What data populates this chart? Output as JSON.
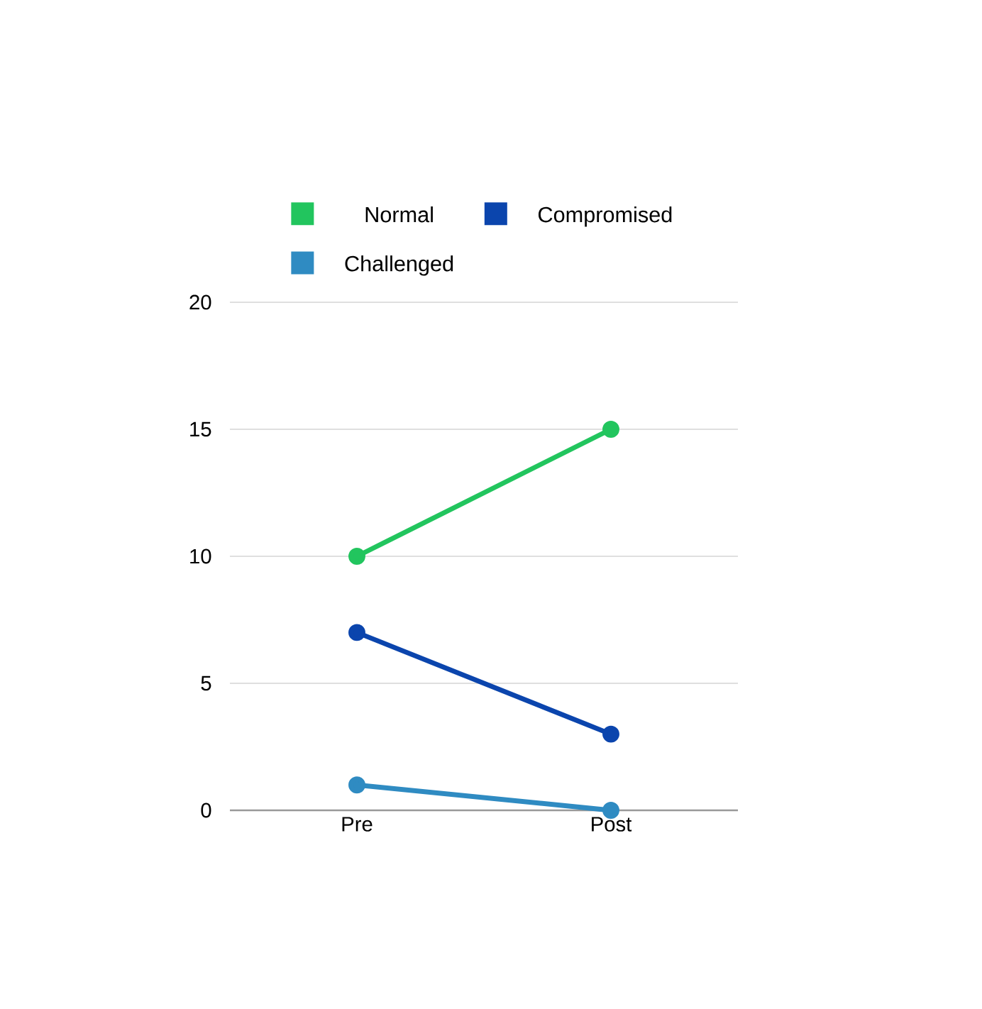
{
  "chart_data": {
    "type": "line",
    "categories": [
      "Pre",
      "Post"
    ],
    "series": [
      {
        "name": "Normal",
        "color": "#22c55e",
        "values": [
          10,
          15
        ]
      },
      {
        "name": "Compromised",
        "color": "#0b45ad",
        "values": [
          7,
          3
        ]
      },
      {
        "name": "Challenged",
        "color": "#2f8bc2",
        "values": [
          1,
          0
        ]
      }
    ],
    "ylim": [
      0,
      20
    ],
    "yticks": [
      0,
      5,
      10,
      15,
      20
    ],
    "grid": "y",
    "legend": "top",
    "marker": "circle",
    "line_style": "solid"
  }
}
